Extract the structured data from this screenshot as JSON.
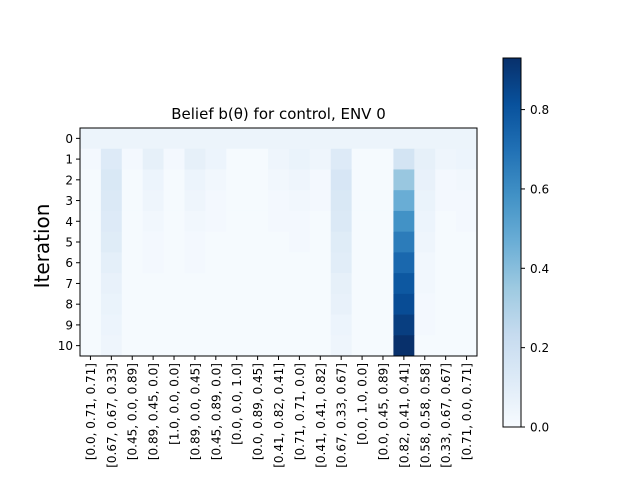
{
  "chart_data": {
    "type": "heatmap",
    "title": "Belief b(θ) for control, ENV 0",
    "xlabel": "",
    "ylabel": "Iteration",
    "colormap": "Blues",
    "colorbar_range": [
      0.0,
      0.93
    ],
    "colorbar_ticks": [
      "0.0",
      "0.2",
      "0.4",
      "0.6",
      "0.8"
    ],
    "rows": [
      "0",
      "1",
      "2",
      "3",
      "4",
      "5",
      "6",
      "7",
      "8",
      "9",
      "10"
    ],
    "columns": [
      "[0.0, 0.71, 0.71]",
      "[0.67, 0.67, 0.33]",
      "[0.45, 0.0, 0.89]",
      "[0.89, 0.45, 0.0]",
      "[1.0, 0.0, 0.0]",
      "[0.89, 0.0, 0.45]",
      "[0.45, 0.89, 0.0]",
      "[0.0, 0.0, 1.0]",
      "[0.0, 0.89, 0.45]",
      "[0.41, 0.82, 0.41]",
      "[0.71, 0.71, 0.0]",
      "[0.41, 0.41, 0.82]",
      "[0.67, 0.33, 0.67]",
      "[0.0, 1.0, 0.0]",
      "[0.0, 0.45, 0.89]",
      "[0.82, 0.41, 0.41]",
      "[0.58, 0.58, 0.58]",
      "[0.33, 0.67, 0.67]",
      "[0.71, 0.0, 0.71]"
    ],
    "values": [
      [
        0.053,
        0.053,
        0.053,
        0.053,
        0.053,
        0.053,
        0.053,
        0.053,
        0.053,
        0.053,
        0.053,
        0.053,
        0.053,
        0.053,
        0.053,
        0.053,
        0.053,
        0.053,
        0.053
      ],
      [
        0.02,
        0.12,
        0.02,
        0.08,
        0.02,
        0.08,
        0.05,
        0.01,
        0.01,
        0.04,
        0.06,
        0.04,
        0.12,
        0.01,
        0.01,
        0.17,
        0.08,
        0.04,
        0.05
      ],
      [
        0.01,
        0.14,
        0.01,
        0.05,
        0.01,
        0.05,
        0.03,
        0.01,
        0.01,
        0.03,
        0.04,
        0.02,
        0.15,
        0.01,
        0.01,
        0.36,
        0.07,
        0.02,
        0.03
      ],
      [
        0.01,
        0.13,
        0.01,
        0.04,
        0.01,
        0.04,
        0.02,
        0.01,
        0.01,
        0.02,
        0.03,
        0.02,
        0.14,
        0.01,
        0.01,
        0.47,
        0.06,
        0.02,
        0.02
      ],
      [
        0.01,
        0.12,
        0.01,
        0.03,
        0.01,
        0.03,
        0.02,
        0.01,
        0.01,
        0.02,
        0.02,
        0.01,
        0.13,
        0.01,
        0.01,
        0.58,
        0.05,
        0.01,
        0.02
      ],
      [
        0.01,
        0.11,
        0.01,
        0.02,
        0.01,
        0.02,
        0.01,
        0.01,
        0.01,
        0.01,
        0.02,
        0.01,
        0.11,
        0.01,
        0.01,
        0.66,
        0.04,
        0.01,
        0.01
      ],
      [
        0.01,
        0.09,
        0.01,
        0.02,
        0.01,
        0.02,
        0.01,
        0.01,
        0.01,
        0.01,
        0.01,
        0.01,
        0.1,
        0.01,
        0.01,
        0.73,
        0.03,
        0.01,
        0.01
      ],
      [
        0.01,
        0.07,
        0.01,
        0.01,
        0.01,
        0.01,
        0.01,
        0.01,
        0.01,
        0.01,
        0.01,
        0.01,
        0.08,
        0.01,
        0.01,
        0.79,
        0.03,
        0.01,
        0.01
      ],
      [
        0.01,
        0.06,
        0.01,
        0.01,
        0.01,
        0.01,
        0.01,
        0.01,
        0.01,
        0.01,
        0.01,
        0.01,
        0.07,
        0.01,
        0.01,
        0.83,
        0.02,
        0.01,
        0.01
      ],
      [
        0.01,
        0.05,
        0.01,
        0.01,
        0.01,
        0.01,
        0.01,
        0.01,
        0.01,
        0.01,
        0.01,
        0.01,
        0.05,
        0.01,
        0.01,
        0.88,
        0.02,
        0.01,
        0.01
      ],
      [
        0.01,
        0.04,
        0.01,
        0.01,
        0.01,
        0.01,
        0.01,
        0.01,
        0.01,
        0.01,
        0.01,
        0.01,
        0.04,
        0.01,
        0.01,
        0.93,
        0.01,
        0.01,
        0.01
      ]
    ]
  }
}
